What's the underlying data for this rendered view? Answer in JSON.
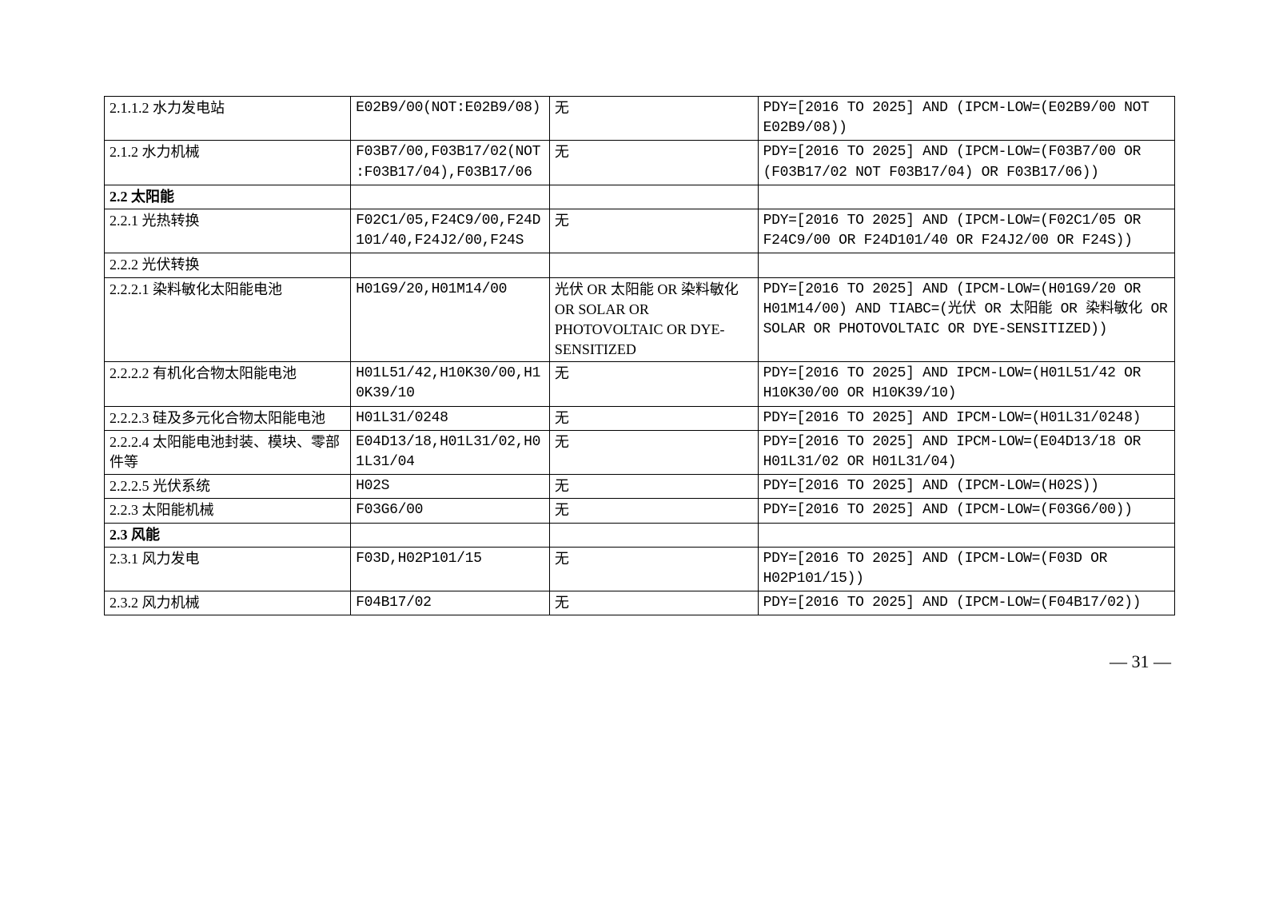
{
  "rows": [
    {
      "section": false,
      "c1": "2.1.1.2 水力发电站",
      "c2": "E02B9/00(NOT:E02B9/08)",
      "c3": "无",
      "c4": "PDY=[2016 TO 2025] AND (IPCM-LOW=(E02B9/00 NOT E02B9/08))"
    },
    {
      "section": false,
      "c1": "2.1.2 水力机械",
      "c2": "F03B7/00,F03B17/02(NOT:F03B17/04),F03B17/06",
      "c3": "无",
      "c4": "PDY=[2016 TO 2025] AND (IPCM-LOW=(F03B7/00 OR (F03B17/02 NOT F03B17/04) OR F03B17/06))"
    },
    {
      "section": true,
      "c1": "2.2 太阳能",
      "c2": "",
      "c3": "",
      "c4": ""
    },
    {
      "section": false,
      "c1": "2.2.1 光热转换",
      "c2": "F02C1/05,F24C9/00,F24D101/40,F24J2/00,F24S",
      "c3": "无",
      "c4": "PDY=[2016 TO 2025] AND (IPCM-LOW=(F02C1/05 OR F24C9/00 OR F24D101/40 OR F24J2/00 OR F24S))"
    },
    {
      "section": false,
      "c1": "2.2.2 光伏转换",
      "c2": "",
      "c3": "",
      "c4": ""
    },
    {
      "section": false,
      "c1": "2.2.2.1 染料敏化太阳能电池",
      "c2": "H01G9/20,H01M14/00",
      "c3": "光伏 OR 太阳能 OR 染料敏化 OR SOLAR OR PHOTOVOLTAIC OR DYE-SENSITIZED",
      "c4": "PDY=[2016 TO 2025] AND (IPCM-LOW=(H01G9/20 OR H01M14/00) AND TIABC=(光伏 OR 太阳能 OR 染料敏化 OR SOLAR OR PHOTOVOLTAIC OR DYE-SENSITIZED))"
    },
    {
      "section": false,
      "c1": "2.2.2.2 有机化合物太阳能电池",
      "c2": "H01L51/42,H10K30/00,H10K39/10",
      "c3": "无",
      "c4": "PDY=[2016 TO 2025] AND IPCM-LOW=(H01L51/42 OR H10K30/00 OR H10K39/10)"
    },
    {
      "section": false,
      "c1": "2.2.2.3 硅及多元化合物太阳能电池",
      "c2": "H01L31/0248",
      "c3": "无",
      "c4": "PDY=[2016 TO 2025] AND IPCM-LOW=(H01L31/0248)"
    },
    {
      "section": false,
      "c1": "2.2.2.4 太阳能电池封装、模块、零部件等",
      "c2": "E04D13/18,H01L31/02,H01L31/04",
      "c3": "无",
      "c4": "PDY=[2016 TO 2025] AND IPCM-LOW=(E04D13/18 OR H01L31/02 OR H01L31/04)"
    },
    {
      "section": false,
      "c1": "2.2.2.5 光伏系统",
      "c2": "H02S",
      "c3": "无",
      "c4": "PDY=[2016 TO 2025] AND (IPCM-LOW=(H02S))"
    },
    {
      "section": false,
      "c1": "2.2.3 太阳能机械",
      "c2": "F03G6/00",
      "c3": "无",
      "c4": "PDY=[2016 TO 2025] AND (IPCM-LOW=(F03G6/00))"
    },
    {
      "section": true,
      "c1": "2.3 风能",
      "c2": "",
      "c3": "",
      "c4": ""
    },
    {
      "section": false,
      "c1": "2.3.1 风力发电",
      "c2": "F03D,H02P101/15",
      "c3": "无",
      "c4": "PDY=[2016 TO 2025] AND (IPCM-LOW=(F03D OR H02P101/15))"
    },
    {
      "section": false,
      "c1": "2.3.2 风力机械",
      "c2": "F04B17/02",
      "c3": "无",
      "c4": "PDY=[2016 TO 2025] AND (IPCM-LOW=(F04B17/02))"
    }
  ],
  "page_number": "— 31 —"
}
